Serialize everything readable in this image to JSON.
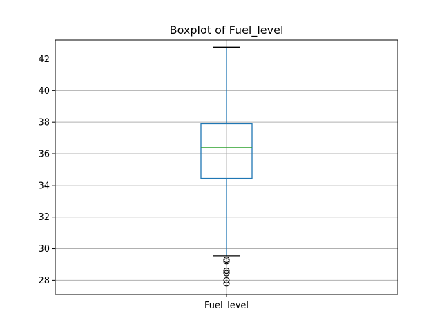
{
  "chart_data": {
    "type": "boxplot",
    "title": "Boxplot of Fuel_level",
    "categories": [
      "Fuel_level"
    ],
    "ylim": [
      27.1,
      43.2
    ],
    "yticks": [
      28,
      30,
      32,
      34,
      36,
      38,
      40,
      42
    ],
    "grid": true,
    "boxes": [
      {
        "category": "Fuel_level",
        "whisker_low": 29.55,
        "q1": 34.45,
        "median": 36.4,
        "q3": 37.9,
        "whisker_high": 42.75,
        "outliers": [
          29.3,
          29.2,
          28.6,
          28.45,
          28.0,
          27.8
        ]
      }
    ],
    "colors": {
      "box": "#1f77b4",
      "median": "#2ca02c",
      "whisker": "#1f77b4",
      "cap": "#000000",
      "flier": "#000000",
      "grid": "#b0b0b0"
    }
  }
}
